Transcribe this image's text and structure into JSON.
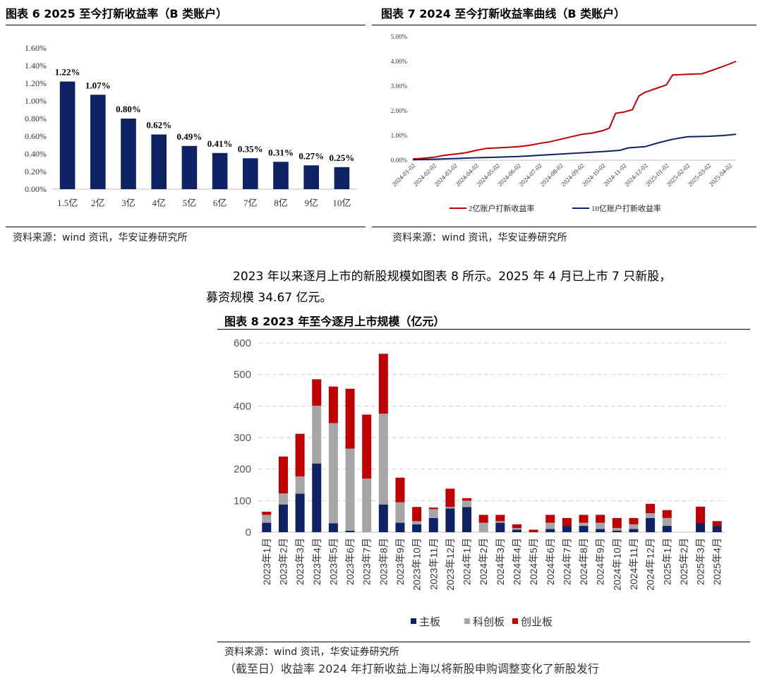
{
  "figures": {
    "fig6": {
      "title": "图表 6 2025 至今打新收益率（B 类账户）",
      "source": "资料来源：wind 资讯，华安证券研究所"
    },
    "fig7": {
      "title": "图表 7 2024 至今打新收益率曲线（B 类账户）",
      "source": "资料来源：wind 资讯，华安证券研究所"
    },
    "fig8": {
      "title": "图表 8 2023 年至今逐月上市规模（亿元）",
      "source": "资料来源：wind 资讯，华安证券研究所"
    }
  },
  "paragraph": {
    "line1": "2023 年以来逐月上市的新股规模如图表 8 所示。2025 年 4 月已上市 7 只新股，",
    "line2": "募资规模 34.67 亿元。"
  },
  "bottom_cut_text": "（截至日）收益率 2024 年打新收益上海以将新股申购调整变化了新股发行",
  "chart_data": [
    {
      "id": "fig6",
      "type": "bar",
      "categories": [
        "1.5亿",
        "2亿",
        "3亿",
        "4亿",
        "5亿",
        "6亿",
        "7亿",
        "8亿",
        "9亿",
        "10亿"
      ],
      "values": [
        1.22,
        1.07,
        0.8,
        0.62,
        0.49,
        0.41,
        0.35,
        0.31,
        0.27,
        0.25
      ],
      "data_labels": [
        "1.22%",
        "1.07%",
        "0.80%",
        "0.62%",
        "0.49%",
        "0.41%",
        "0.35%",
        "0.31%",
        "0.27%",
        "0.25%"
      ],
      "ylim": [
        0,
        1.6
      ],
      "yticks": [
        "0.00%",
        "0.20%",
        "0.40%",
        "0.60%",
        "0.80%",
        "1.00%",
        "1.20%",
        "1.40%",
        "1.60%"
      ],
      "color": "#0d2366",
      "grid": false
    },
    {
      "id": "fig7",
      "type": "line",
      "x_labels": [
        "2024-01-02",
        "2024-02-02",
        "2024-03-02",
        "2024-04-02",
        "2024-05-02",
        "2024-06-02",
        "2024-07-02",
        "2024-08-02",
        "2024-09-02",
        "2024-10-02",
        "2024-11-02",
        "2024-12-02",
        "2025-01-02",
        "2025-02-02",
        "2025-03-02",
        "2025-04-02"
      ],
      "ylim": [
        0,
        5
      ],
      "yticks": [
        "0.00%",
        "1.00%",
        "2.00%",
        "3.00%",
        "4.00%",
        "5.00%"
      ],
      "series": [
        {
          "name": "2亿账户打新收益率",
          "color": "#c00000",
          "points": [
            [
              0,
              0.05
            ],
            [
              0.5,
              0.08
            ],
            [
              1,
              0.12
            ],
            [
              1.5,
              0.2
            ],
            [
              2,
              0.25
            ],
            [
              2.5,
              0.3
            ],
            [
              3,
              0.4
            ],
            [
              3.5,
              0.48
            ],
            [
              4,
              0.5
            ],
            [
              4.5,
              0.52
            ],
            [
              5,
              0.55
            ],
            [
              5.5,
              0.6
            ],
            [
              6,
              0.68
            ],
            [
              6.5,
              0.75
            ],
            [
              7,
              0.85
            ],
            [
              7.5,
              0.95
            ],
            [
              8,
              1.05
            ],
            [
              8.5,
              1.1
            ],
            [
              9,
              1.2
            ],
            [
              9.3,
              1.3
            ],
            [
              9.6,
              1.9
            ],
            [
              10,
              1.95
            ],
            [
              10.4,
              2.05
            ],
            [
              10.7,
              2.6
            ],
            [
              11,
              2.75
            ],
            [
              11.5,
              2.9
            ],
            [
              12,
              3.05
            ],
            [
              12.3,
              3.45
            ],
            [
              13,
              3.48
            ],
            [
              13.7,
              3.5
            ],
            [
              14.2,
              3.65
            ],
            [
              14.7,
              3.8
            ],
            [
              15.3,
              4.0
            ]
          ]
        },
        {
          "name": "10亿账户打新收益率",
          "color": "#0d2366",
          "points": [
            [
              0,
              0.02
            ],
            [
              1,
              0.04
            ],
            [
              2,
              0.07
            ],
            [
              3,
              0.1
            ],
            [
              4,
              0.12
            ],
            [
              5,
              0.15
            ],
            [
              6,
              0.2
            ],
            [
              7,
              0.25
            ],
            [
              8,
              0.3
            ],
            [
              9,
              0.35
            ],
            [
              9.8,
              0.4
            ],
            [
              10.2,
              0.5
            ],
            [
              11,
              0.55
            ],
            [
              11.6,
              0.7
            ],
            [
              12.3,
              0.85
            ],
            [
              13,
              0.95
            ],
            [
              14,
              0.97
            ],
            [
              14.7,
              1.0
            ],
            [
              15.3,
              1.05
            ]
          ]
        }
      ],
      "legend_placement": "bottom"
    },
    {
      "id": "fig8",
      "type": "bar",
      "stacked": true,
      "categories": [
        "2023年1月",
        "2023年2月",
        "2023年3月",
        "2023年4月",
        "2023年5月",
        "2023年6月",
        "2023年7月",
        "2023年8月",
        "2023年9月",
        "2023年10月",
        "2023年11月",
        "2023年12月",
        "2024年1月",
        "2024年2月",
        "2024年3月",
        "2024年4月",
        "2024年5月",
        "2024年6月",
        "2024年7月",
        "2024年8月",
        "2024年9月",
        "2024年10月",
        "2024年11月",
        "2024年12月",
        "2025年1月",
        "2025年2月",
        "2025年3月",
        "2025年4月"
      ],
      "series": [
        {
          "name": "主板",
          "color": "#0d2366",
          "values": [
            30,
            88,
            122,
            218,
            28,
            5,
            0,
            88,
            30,
            25,
            45,
            75,
            80,
            0,
            30,
            8,
            0,
            10,
            20,
            20,
            10,
            5,
            10,
            45,
            20,
            0,
            28,
            20
          ]
        },
        {
          "name": "科创板",
          "color": "#a6a6a6",
          "values": [
            25,
            35,
            55,
            183,
            318,
            260,
            170,
            288,
            65,
            10,
            28,
            5,
            20,
            30,
            5,
            5,
            0,
            20,
            0,
            10,
            20,
            8,
            15,
            15,
            25,
            0,
            0,
            0
          ]
        },
        {
          "name": "创业板",
          "color": "#c00000",
          "values": [
            10,
            117,
            135,
            84,
            116,
            190,
            203,
            190,
            78,
            45,
            5,
            58,
            8,
            25,
            20,
            12,
            8,
            25,
            25,
            25,
            25,
            32,
            20,
            30,
            25,
            0,
            53,
            15
          ]
        }
      ],
      "ylim": [
        0,
        600
      ],
      "yticks": [
        "0",
        "100",
        "200",
        "300",
        "400",
        "500",
        "600"
      ],
      "grid": true,
      "legend_placement": "bottom"
    }
  ]
}
